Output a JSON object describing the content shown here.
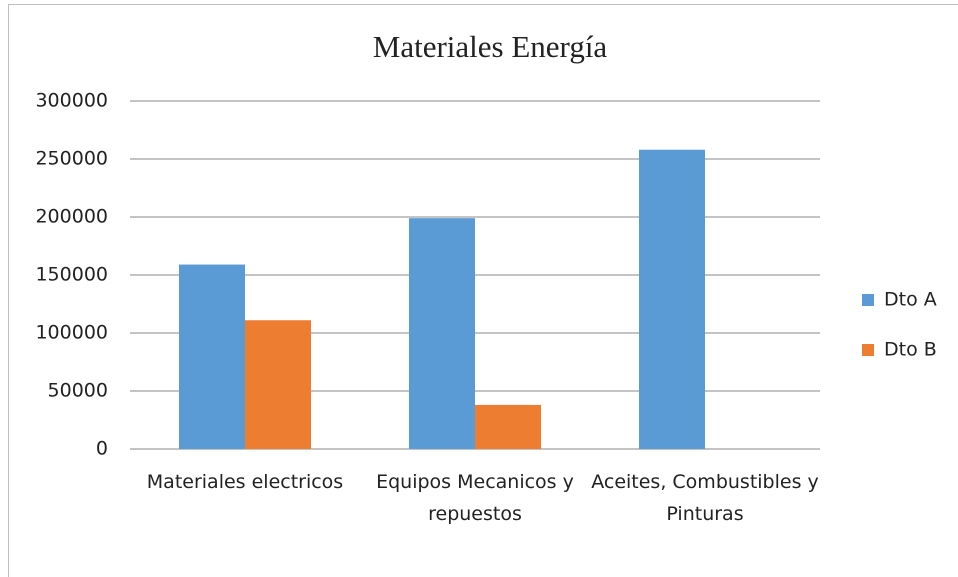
{
  "chart_data": {
    "type": "bar",
    "title": "Materiales Energía",
    "categories": [
      "Materiales electricos",
      "Equipos Mecanicos y repuestos",
      "Aceites, Combustibles y Pinturas"
    ],
    "series": [
      {
        "name": "Dto A",
        "color": "#5b9bd5",
        "values": [
          159000,
          199000,
          258000
        ]
      },
      {
        "name": "Dto B",
        "color": "#ed7d31",
        "values": [
          111000,
          38000,
          null
        ]
      }
    ],
    "ylim": [
      0,
      300000
    ],
    "yticks": [
      0,
      50000,
      100000,
      150000,
      200000,
      250000,
      300000
    ],
    "grid": true,
    "legend": "right"
  }
}
